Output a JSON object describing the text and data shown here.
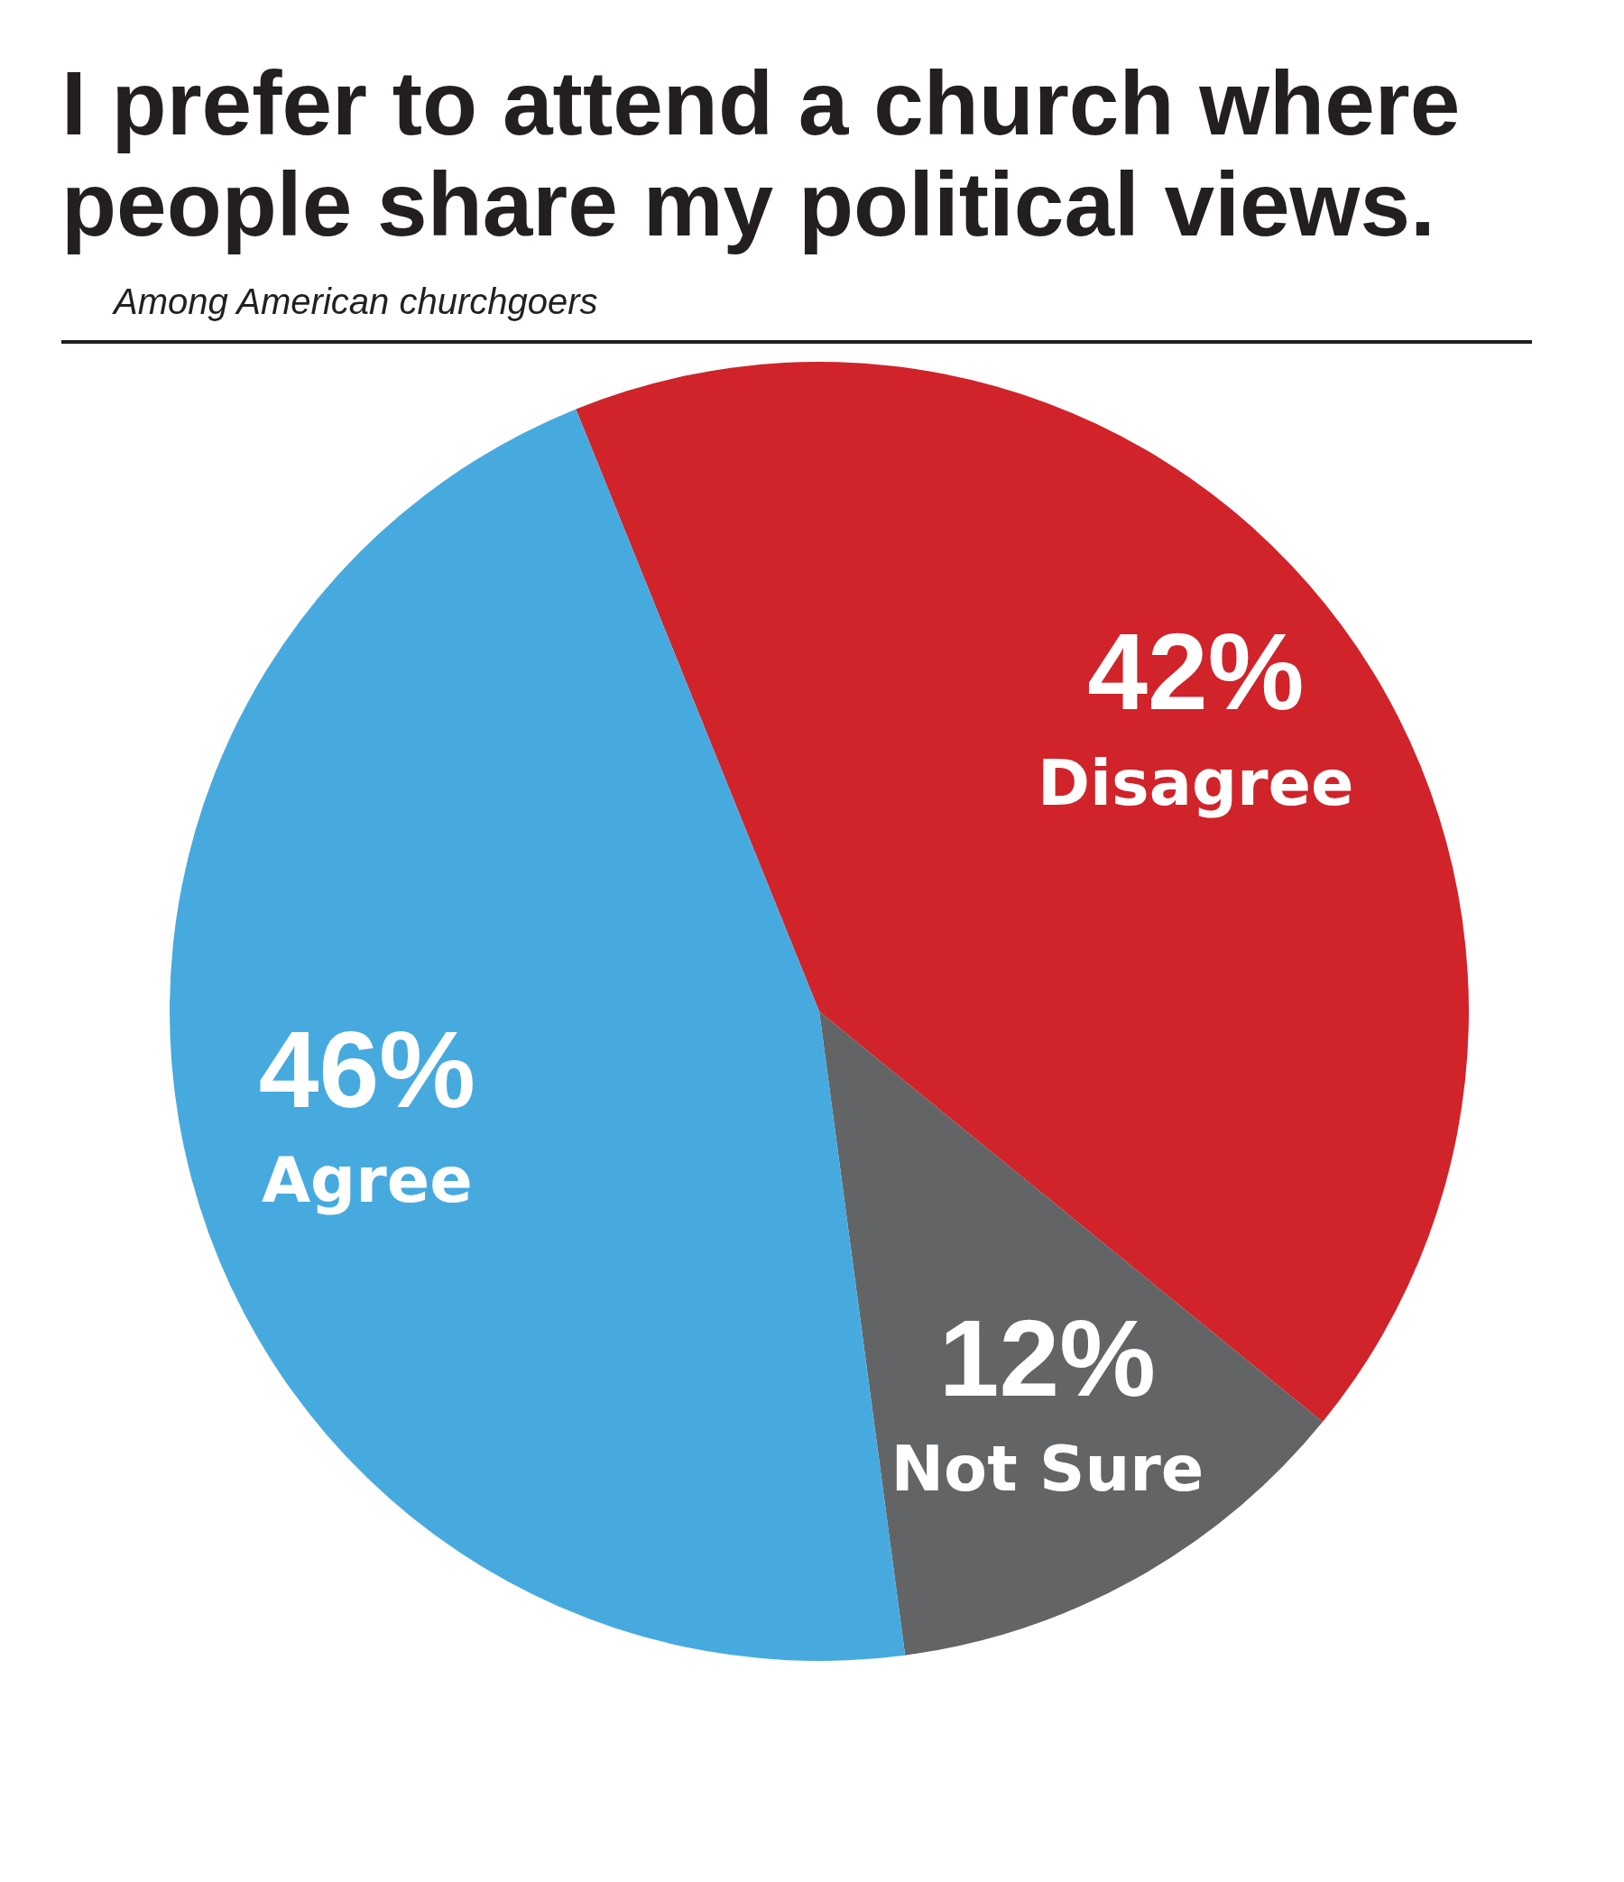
{
  "chart_data": {
    "type": "pie",
    "title": "I prefer to attend a church where people share my political views.",
    "subtitle": "Among American churchgoers",
    "categories": [
      "Disagree",
      "Not Sure",
      "Agree"
    ],
    "values": [
      42,
      12,
      46
    ],
    "value_labels": [
      "42%",
      "12%",
      "46%"
    ],
    "colors": [
      "#d0232a",
      "#636466",
      "#47aadf"
    ],
    "legend": false
  }
}
